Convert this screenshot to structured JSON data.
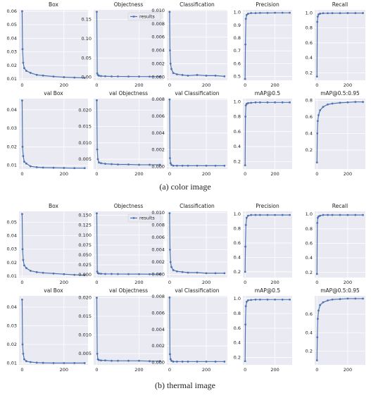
{
  "captions": [
    "(a) color image",
    "(b) thermal image"
  ],
  "chart_data": [
    {
      "type": "line",
      "title": "Box",
      "x": [
        0,
        2,
        5,
        10,
        20,
        40,
        70,
        100,
        150,
        200,
        250,
        299
      ],
      "series": [
        {
          "color": "#4c72b0",
          "values": [
            0.06,
            0.032,
            0.022,
            0.018,
            0.016,
            0.0145,
            0.013,
            0.0125,
            0.0118,
            0.0113,
            0.011,
            0.0108
          ]
        }
      ],
      "xlim": [
        -15,
        315
      ],
      "xticks": [
        0,
        200
      ],
      "ylim": [
        0.009,
        0.061
      ],
      "yticks": [
        0.01,
        0.02,
        0.03,
        0.04,
        0.05,
        0.06
      ],
      "grid": true
    },
    {
      "type": "line",
      "title": "Objectness",
      "x": [
        0,
        2,
        5,
        10,
        20,
        40,
        70,
        100,
        150,
        200,
        250,
        299
      ],
      "series": [
        {
          "name": "results",
          "color": "#4c72b0",
          "values": [
            0.17,
            0.01,
            0.006,
            0.004,
            0.003,
            0.0025,
            0.002,
            0.002,
            0.0018,
            0.0017,
            0.0016,
            0.0015
          ]
        }
      ],
      "legend": "upper right",
      "xlim": [
        -15,
        315
      ],
      "xticks": [
        0,
        200
      ],
      "ylim": [
        -0.008,
        0.175
      ],
      "yticks": [
        {
          "value": 0,
          "label": "0.00"
        },
        0.05,
        {
          "value": 0.1,
          "label": "0.10"
        },
        0.15
      ],
      "grid": true
    },
    {
      "type": "line",
      "title": "Classification",
      "x": [
        0,
        2,
        5,
        10,
        20,
        40,
        70,
        100,
        150,
        200,
        250,
        299
      ],
      "series": [
        {
          "color": "#4c72b0",
          "values": [
            0.0098,
            0.004,
            0.002,
            0.0012,
            0.0006,
            0.0004,
            0.0003,
            0.0002,
            0.0003,
            0.0002,
            0.0002,
            0.0001
          ]
        }
      ],
      "xlim": [
        -15,
        315
      ],
      "xticks": [
        0,
        200
      ],
      "ylim": [
        -0.0005,
        0.0101
      ],
      "yticks": [
        {
          "value": 0,
          "label": "0.000"
        },
        {
          "value": 0.002,
          "label": "0.002"
        },
        {
          "value": 0.004,
          "label": "0.004"
        },
        {
          "value": 0.006,
          "label": "0.006"
        },
        {
          "value": 0.008,
          "label": "0.008"
        },
        {
          "value": 0.01,
          "label": "0.010"
        }
      ],
      "grid": true
    },
    {
      "type": "line",
      "title": "Precision",
      "x": [
        0,
        2,
        5,
        10,
        20,
        40,
        70,
        100,
        150,
        200,
        250,
        299
      ],
      "series": [
        {
          "color": "#4c72b0",
          "values": [
            0.48,
            0.75,
            0.95,
            0.98,
            0.99,
            0.995,
            0.995,
            0.996,
            0.996,
            0.997,
            0.997,
            0.997
          ]
        }
      ],
      "xlim": [
        -15,
        315
      ],
      "xticks": [
        0,
        200
      ],
      "ylim": [
        0.47,
        1.02
      ],
      "yticks": [
        0.5,
        0.6,
        0.7,
        0.8,
        0.9,
        {
          "value": 1,
          "label": "1.0"
        }
      ],
      "grid": true
    },
    {
      "type": "line",
      "title": "Recall",
      "x": [
        0,
        2,
        5,
        10,
        20,
        40,
        70,
        100,
        150,
        200,
        250,
        299
      ],
      "series": [
        {
          "color": "#4c72b0",
          "values": [
            0.15,
            0.88,
            0.95,
            0.98,
            0.99,
            0.995,
            0.995,
            0.996,
            0.996,
            0.997,
            0.997,
            0.997
          ]
        }
      ],
      "xlim": [
        -15,
        315
      ],
      "xticks": [
        0,
        200
      ],
      "ylim": [
        0.1,
        1.04
      ],
      "yticks": [
        0.2,
        0.4,
        0.6,
        0.8,
        {
          "value": 1,
          "label": "1.0"
        }
      ],
      "grid": true
    },
    {
      "type": "line",
      "title": "val Box",
      "x": [
        0,
        2,
        5,
        10,
        20,
        40,
        70,
        100,
        150,
        200,
        250,
        299
      ],
      "series": [
        {
          "color": "#4c72b0",
          "values": [
            0.045,
            0.02,
            0.015,
            0.012,
            0.011,
            0.0095,
            0.009,
            0.0088,
            0.0087,
            0.0086,
            0.0085,
            0.0085
          ]
        }
      ],
      "xlim": [
        -15,
        315
      ],
      "xticks": [
        0,
        200
      ],
      "ylim": [
        0.008,
        0.046
      ],
      "yticks": [
        0.01,
        0.02,
        0.03,
        0.04
      ],
      "grid": true
    },
    {
      "type": "line",
      "title": "val Objectness",
      "x": [
        0,
        2,
        5,
        10,
        20,
        40,
        70,
        100,
        150,
        200,
        250,
        299
      ],
      "series": [
        {
          "color": "#4c72b0",
          "values": [
            0.023,
            0.008,
            0.005,
            0.004,
            0.0038,
            0.0036,
            0.0035,
            0.0034,
            0.0034,
            0.0033,
            0.0033,
            0.0033
          ]
        }
      ],
      "xlim": [
        -15,
        315
      ],
      "xticks": [
        0,
        200
      ],
      "ylim": [
        0.002,
        0.0235
      ],
      "yticks": [
        {
          "value": 0.005,
          "label": "0.005"
        },
        {
          "value": 0.01,
          "label": "0.010"
        },
        {
          "value": 0.015,
          "label": "0.015"
        },
        {
          "value": 0.02,
          "label": "0.020"
        }
      ],
      "grid": true
    },
    {
      "type": "line",
      "title": "val Classification",
      "x": [
        0,
        2,
        5,
        10,
        20,
        40,
        70,
        100,
        150,
        200,
        250,
        299
      ],
      "series": [
        {
          "color": "#4c72b0",
          "values": [
            0.008,
            0.001,
            0.0004,
            0.0002,
            0.0001,
            0.0001,
            0.0001,
            0.0001,
            0.0001,
            0.0001,
            0.0001,
            0.0001
          ]
        }
      ],
      "xlim": [
        -15,
        315
      ],
      "xticks": [
        0,
        200
      ],
      "ylim": [
        -0.0003,
        0.0081
      ],
      "yticks": [
        {
          "value": 0,
          "label": "0.000"
        },
        {
          "value": 0.002,
          "label": "0.002"
        },
        {
          "value": 0.004,
          "label": "0.004"
        },
        {
          "value": 0.006,
          "label": "0.006"
        },
        {
          "value": 0.008,
          "label": "0.008"
        }
      ],
      "grid": true
    },
    {
      "type": "line",
      "title": "mAP@0.5",
      "x": [
        0,
        2,
        5,
        10,
        20,
        40,
        70,
        100,
        150,
        200,
        250,
        299
      ],
      "series": [
        {
          "color": "#4c72b0",
          "values": [
            0.15,
            0.8,
            0.95,
            0.97,
            0.98,
            0.985,
            0.99,
            0.99,
            0.99,
            0.99,
            0.99,
            0.99
          ]
        }
      ],
      "xlim": [
        -15,
        315
      ],
      "xticks": [
        0,
        200
      ],
      "ylim": [
        0.1,
        1.04
      ],
      "yticks": [
        0.2,
        0.4,
        0.6,
        0.8,
        {
          "value": 1,
          "label": "1.0"
        }
      ],
      "grid": true
    },
    {
      "type": "line",
      "title": "mAP@0.5:0.95",
      "x": [
        0,
        2,
        5,
        10,
        20,
        40,
        70,
        100,
        150,
        200,
        250,
        299
      ],
      "series": [
        {
          "color": "#4c72b0",
          "values": [
            0.05,
            0.4,
            0.55,
            0.62,
            0.68,
            0.72,
            0.75,
            0.76,
            0.77,
            0.775,
            0.78,
            0.78
          ]
        }
      ],
      "xlim": [
        -15,
        315
      ],
      "xticks": [
        0,
        200
      ],
      "ylim": [
        -0.03,
        0.82
      ],
      "yticks": [
        0.2,
        0.4,
        0.6,
        0.8
      ],
      "grid": true
    },
    {
      "type": "line",
      "title": "Box",
      "x": [
        0,
        2,
        5,
        10,
        20,
        40,
        70,
        100,
        150,
        200,
        250,
        299
      ],
      "series": [
        {
          "color": "#4c72b0",
          "values": [
            0.056,
            0.03,
            0.022,
            0.018,
            0.016,
            0.014,
            0.013,
            0.0125,
            0.012,
            0.0115,
            0.011,
            0.0108
          ]
        }
      ],
      "xlim": [
        -15,
        315
      ],
      "xticks": [
        0,
        200
      ],
      "ylim": [
        0.009,
        0.058
      ],
      "yticks": [
        0.01,
        0.02,
        0.03,
        0.04,
        0.05
      ],
      "grid": true
    },
    {
      "type": "line",
      "title": "Objectness",
      "x": [
        0,
        2,
        5,
        10,
        20,
        40,
        70,
        100,
        150,
        200,
        250,
        299
      ],
      "series": [
        {
          "name": "results",
          "color": "#4c72b0",
          "values": [
            0.155,
            0.008,
            0.004,
            0.003,
            0.0025,
            0.002,
            0.002,
            0.0018,
            0.0017,
            0.0016,
            0.0015,
            0.0015
          ]
        }
      ],
      "legend": "upper right",
      "xlim": [
        -15,
        315
      ],
      "xticks": [
        0,
        200
      ],
      "ylim": [
        -0.007,
        0.16
      ],
      "yticks": [
        {
          "value": 0,
          "label": "0.000"
        },
        {
          "value": 0.025,
          "label": "0.025"
        },
        {
          "value": 0.05,
          "label": "0.050"
        },
        {
          "value": 0.075,
          "label": "0.075"
        },
        {
          "value": 0.1,
          "label": "0.100"
        },
        {
          "value": 0.125,
          "label": "0.125"
        },
        {
          "value": 0.15,
          "label": "0.150"
        }
      ],
      "grid": true
    },
    {
      "type": "line",
      "title": "Classification",
      "x": [
        0,
        2,
        5,
        10,
        20,
        40,
        70,
        100,
        150,
        200,
        250,
        299
      ],
      "series": [
        {
          "color": "#4c72b0",
          "values": [
            0.0099,
            0.004,
            0.002,
            0.0012,
            0.0007,
            0.0005,
            0.0004,
            0.0003,
            0.0003,
            0.0002,
            0.0002,
            0.0002
          ]
        }
      ],
      "xlim": [
        -15,
        315
      ],
      "xticks": [
        0,
        200
      ],
      "ylim": [
        -0.0005,
        0.0102
      ],
      "yticks": [
        {
          "value": 0,
          "label": "0.000"
        },
        {
          "value": 0.002,
          "label": "0.002"
        },
        {
          "value": 0.004,
          "label": "0.004"
        },
        {
          "value": 0.006,
          "label": "0.006"
        },
        {
          "value": 0.008,
          "label": "0.008"
        },
        {
          "value": 0.01,
          "label": "0.010"
        }
      ],
      "grid": true
    },
    {
      "type": "line",
      "title": "Precision",
      "x": [
        0,
        2,
        5,
        10,
        20,
        40,
        70,
        100,
        150,
        200,
        250,
        299
      ],
      "series": [
        {
          "color": "#4c72b0",
          "values": [
            0.2,
            0.55,
            0.85,
            0.95,
            0.98,
            0.99,
            0.99,
            0.99,
            0.99,
            0.99,
            0.99,
            0.99
          ]
        }
      ],
      "xlim": [
        -15,
        315
      ],
      "xticks": [
        0,
        200
      ],
      "ylim": [
        0.12,
        1.04
      ],
      "yticks": [
        0.2,
        0.4,
        0.6,
        0.8,
        {
          "value": 1,
          "label": "1.0"
        }
      ],
      "grid": true
    },
    {
      "type": "line",
      "title": "Recall",
      "x": [
        0,
        2,
        5,
        10,
        20,
        40,
        70,
        100,
        150,
        200,
        250,
        299
      ],
      "series": [
        {
          "color": "#4c72b0",
          "values": [
            0.18,
            0.88,
            0.95,
            0.97,
            0.98,
            0.99,
            0.99,
            0.99,
            0.99,
            0.99,
            0.99,
            0.99
          ]
        }
      ],
      "xlim": [
        -15,
        315
      ],
      "xticks": [
        0,
        200
      ],
      "ylim": [
        0.13,
        1.04
      ],
      "yticks": [
        0.2,
        0.4,
        0.6,
        0.8,
        {
          "value": 1,
          "label": "1.0"
        }
      ],
      "grid": true
    },
    {
      "type": "line",
      "title": "val Box",
      "x": [
        0,
        2,
        5,
        10,
        20,
        40,
        70,
        100,
        150,
        200,
        250,
        299
      ],
      "series": [
        {
          "color": "#4c72b0",
          "values": [
            0.044,
            0.02,
            0.015,
            0.012,
            0.011,
            0.0105,
            0.0102,
            0.0101,
            0.01,
            0.01,
            0.01,
            0.01
          ]
        }
      ],
      "xlim": [
        -15,
        315
      ],
      "xticks": [
        0,
        200
      ],
      "ylim": [
        0.009,
        0.046
      ],
      "yticks": [
        0.01,
        0.02,
        0.03,
        0.04
      ],
      "grid": true
    },
    {
      "type": "line",
      "title": "val Objectness",
      "x": [
        0,
        2,
        5,
        10,
        20,
        40,
        70,
        100,
        150,
        200,
        250,
        299
      ],
      "series": [
        {
          "color": "#4c72b0",
          "values": [
            0.02,
            0.005,
            0.0035,
            0.0033,
            0.0032,
            0.0032,
            0.0031,
            0.0031,
            0.0031,
            0.0031,
            0.003,
            0.003
          ]
        }
      ],
      "xlim": [
        -15,
        315
      ],
      "xticks": [
        0,
        200
      ],
      "ylim": [
        0.002,
        0.0205
      ],
      "yticks": [
        {
          "value": 0.005,
          "label": "0.005"
        },
        {
          "value": 0.01,
          "label": "0.010"
        },
        {
          "value": 0.015,
          "label": "0.015"
        },
        {
          "value": 0.02,
          "label": "0.020"
        }
      ],
      "grid": true
    },
    {
      "type": "line",
      "title": "val Classification",
      "x": [
        0,
        2,
        5,
        10,
        20,
        40,
        70,
        100,
        150,
        200,
        250,
        299
      ],
      "series": [
        {
          "color": "#4c72b0",
          "values": [
            0.0079,
            0.001,
            0.0004,
            0.0002,
            0.0001,
            0.0001,
            0.0001,
            0.0001,
            0.0001,
            0.0001,
            0.0001,
            0.0001
          ]
        }
      ],
      "xlim": [
        -15,
        315
      ],
      "xticks": [
        0,
        200
      ],
      "ylim": [
        -0.0003,
        0.0081
      ],
      "yticks": [
        {
          "value": 0,
          "label": "0.000"
        },
        {
          "value": 0.002,
          "label": "0.002"
        },
        {
          "value": 0.004,
          "label": "0.004"
        },
        {
          "value": 0.006,
          "label": "0.006"
        },
        {
          "value": 0.008,
          "label": "0.008"
        }
      ],
      "grid": true
    },
    {
      "type": "line",
      "title": "mAP@0.5",
      "x": [
        0,
        2,
        5,
        10,
        20,
        40,
        70,
        100,
        150,
        200,
        250,
        299
      ],
      "series": [
        {
          "color": "#4c72b0",
          "values": [
            0.15,
            0.65,
            0.9,
            0.96,
            0.98,
            0.985,
            0.99,
            0.99,
            0.99,
            0.99,
            0.99,
            0.99
          ]
        }
      ],
      "xlim": [
        -15,
        315
      ],
      "xticks": [
        0,
        200
      ],
      "ylim": [
        0.1,
        1.04
      ],
      "yticks": [
        0.2,
        0.4,
        0.6,
        0.8,
        {
          "value": 1,
          "label": "1.0"
        }
      ],
      "grid": true
    },
    {
      "type": "line",
      "title": "mAP@0.5:0.95",
      "x": [
        0,
        2,
        5,
        10,
        20,
        40,
        70,
        100,
        150,
        200,
        250,
        299
      ],
      "series": [
        {
          "color": "#4c72b0",
          "values": [
            0.1,
            0.35,
            0.55,
            0.64,
            0.7,
            0.73,
            0.75,
            0.76,
            0.765,
            0.77,
            0.77,
            0.77
          ]
        }
      ],
      "xlim": [
        -15,
        315
      ],
      "xticks": [
        0,
        200
      ],
      "ylim": [
        0.05,
        0.8
      ],
      "yticks": [
        0.2,
        0.4,
        0.6
      ],
      "grid": true
    }
  ]
}
